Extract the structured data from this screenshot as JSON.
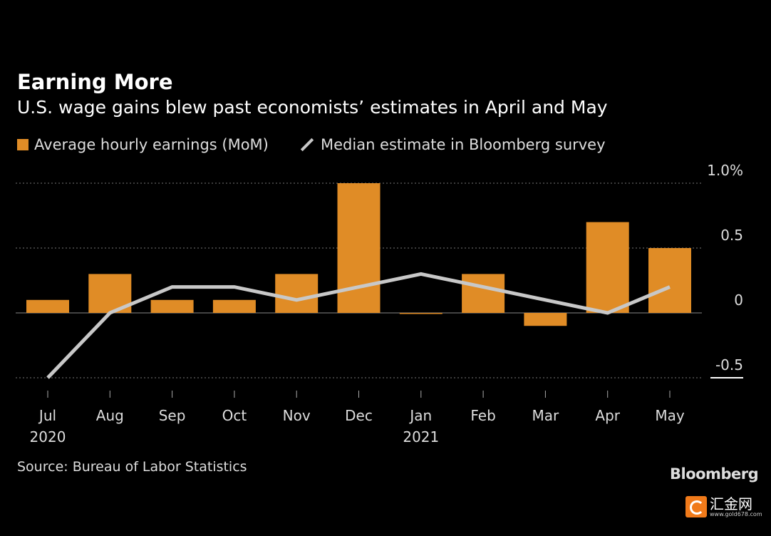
{
  "chart_data": {
    "type": "bar",
    "title": "Earning More",
    "subtitle": "U.S. wage gains blew past economists’ estimates in April and May",
    "categories": [
      "Jul",
      "Aug",
      "Sep",
      "Oct",
      "Nov",
      "Dec",
      "Jan",
      "Feb",
      "Mar",
      "Apr",
      "May"
    ],
    "year_labels": {
      "0": "2020",
      "6": "2021"
    },
    "series": [
      {
        "name": "Average hourly earnings (MoM)",
        "type": "bar",
        "color": "#e08c26",
        "values": [
          0.1,
          0.3,
          0.1,
          0.1,
          0.3,
          1.0,
          0.0,
          0.3,
          -0.1,
          0.7,
          0.5
        ]
      },
      {
        "name": "Median estimate in Bloomberg survey",
        "type": "line",
        "color": "#c8c8c8",
        "values": [
          -0.5,
          0.0,
          0.2,
          0.2,
          0.1,
          0.2,
          0.3,
          0.2,
          0.1,
          0.0,
          0.2
        ]
      }
    ],
    "yticks": [
      {
        "v": 1.0,
        "label": "1.0%"
      },
      {
        "v": 0.5,
        "label": "0.5"
      },
      {
        "v": 0,
        "label": "0"
      },
      {
        "v": -0.5,
        "label": "-0.5"
      }
    ],
    "ylim": [
      -0.5,
      1.0
    ],
    "xlabel": "",
    "ylabel": "",
    "legend_position": "top-left",
    "source": "Source: Bureau of Labor Statistics",
    "brand": "Bloomberg",
    "watermark": {
      "name": "汇金网",
      "url": "www.gold678.com"
    }
  }
}
